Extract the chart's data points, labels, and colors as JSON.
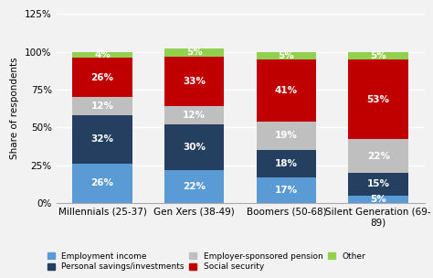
{
  "categories": [
    "Millennials (25-37)",
    "Gen Xers (38-49)",
    "Boomers (50-68)",
    "Silent Generation (69-\n89)"
  ],
  "series": {
    "Employment income": [
      26,
      22,
      17,
      5
    ],
    "Personal savings/investments": [
      32,
      30,
      18,
      15
    ],
    "Employer-sponsored pension": [
      12,
      12,
      19,
      22
    ],
    "Social security": [
      26,
      33,
      41,
      53
    ],
    "Other": [
      4,
      5,
      5,
      5
    ]
  },
  "colors": {
    "Employment income": "#5b9bd5",
    "Personal savings/investments": "#243f60",
    "Employer-sponsored pension": "#bfbfbf",
    "Social security": "#c00000",
    "Other": "#92d050"
  },
  "ylabel": "Share of respondents",
  "ylim": [
    0,
    125
  ],
  "yticks": [
    0,
    25,
    50,
    75,
    100,
    125
  ],
  "ytick_labels": [
    "0%",
    "25%",
    "50%",
    "75%",
    "100%",
    "125%"
  ],
  "legend_row1": [
    "Employment income",
    "Personal savings/investments",
    "Employer-sponsored pension"
  ],
  "legend_row2": [
    "Social security",
    "Other"
  ],
  "legend_order": [
    "Employment income",
    "Personal savings/investments",
    "Employer-sponsored pension",
    "Social security",
    "Other"
  ],
  "background_color": "#f2f2f2",
  "bar_width": 0.65,
  "label_fontsize": 7.5,
  "axis_fontsize": 7.5,
  "legend_fontsize": 6.5
}
